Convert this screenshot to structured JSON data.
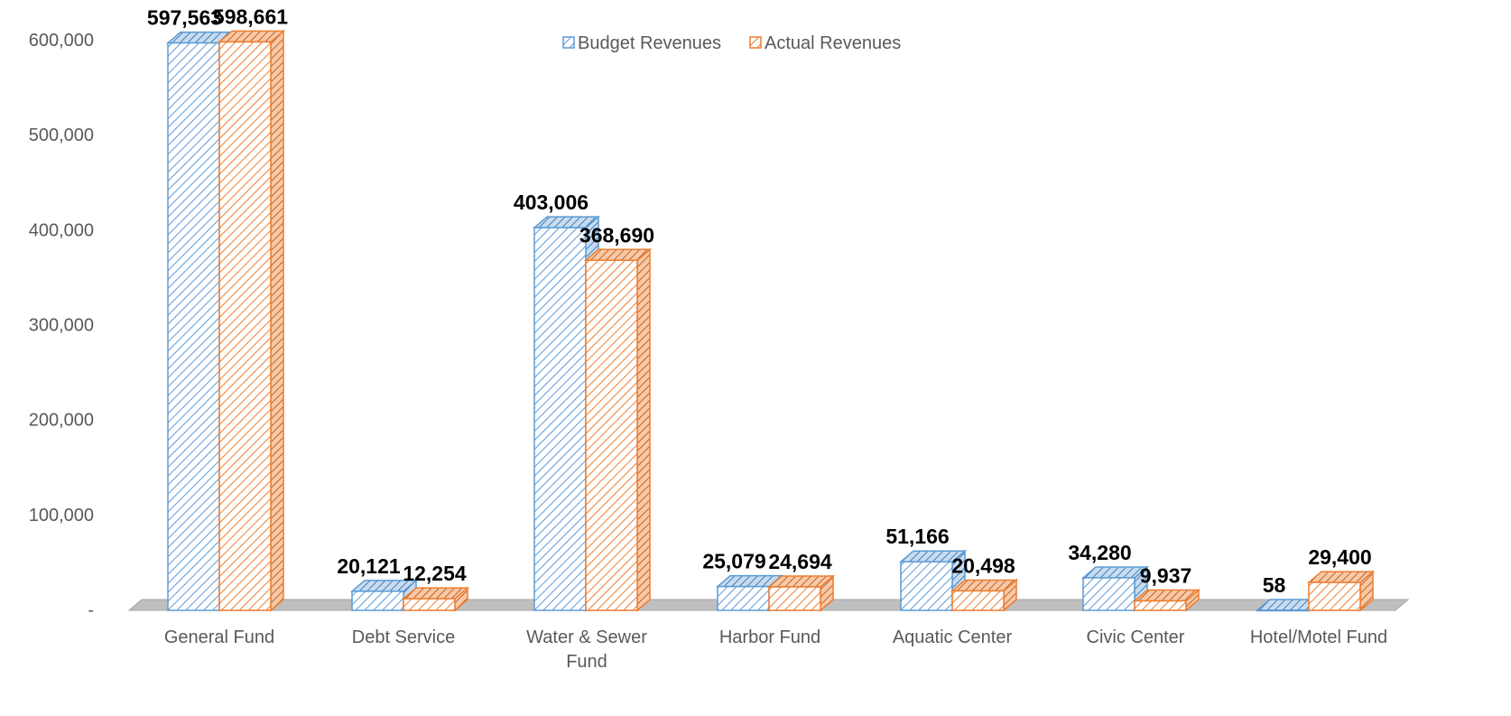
{
  "chart_data": {
    "type": "bar",
    "categories": [
      "General Fund",
      "Debt Service",
      "Water & Sewer Fund",
      "Harbor Fund",
      "Aquatic Center",
      "Civic Center",
      "Hotel/Motel Fund"
    ],
    "series": [
      {
        "name": "Budget Revenues",
        "values": [
          597563,
          20121,
          403006,
          25079,
          51166,
          34280,
          58
        ],
        "labels": [
          "597,563",
          "20,121",
          "403,006",
          "25,079",
          "51,166",
          "34,280",
          "58"
        ]
      },
      {
        "name": "Actual Revenues",
        "values": [
          598661,
          12254,
          368690,
          24694,
          20498,
          9937,
          29400
        ],
        "labels": [
          "598,661",
          "12,254",
          "368,690",
          "24,694",
          "20,498",
          "9,937",
          "29,400"
        ]
      }
    ],
    "yticks": [
      0,
      100000,
      200000,
      300000,
      400000,
      500000,
      600000
    ],
    "ytick_labels": [
      "-",
      "100,000",
      "200,000",
      "300,000",
      "400,000",
      "500,000",
      "600,000"
    ],
    "ylim": [
      0,
      600000
    ],
    "title": "",
    "xlabel": "",
    "ylabel": "",
    "legend_position": "top-center",
    "three_d": true,
    "colors": {
      "budget": "#5B9BD5",
      "actual": "#ED7D31",
      "floor": "#BFBFBF"
    }
  }
}
